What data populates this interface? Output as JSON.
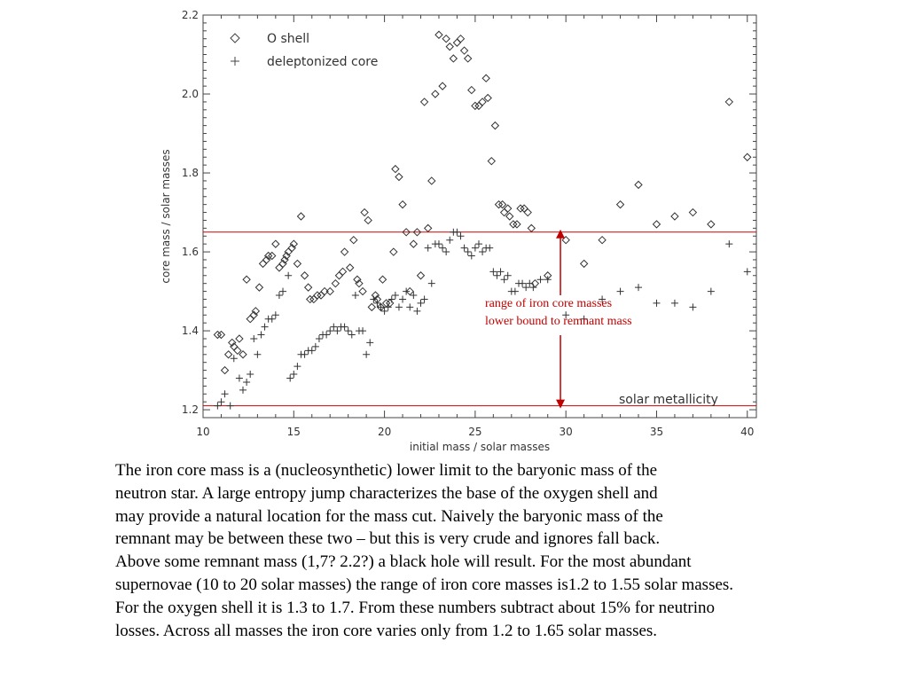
{
  "chart_data": {
    "type": "scatter",
    "xlabel": "initial mass / solar masses",
    "ylabel": "core mass / solar masses",
    "xlim": [
      10,
      40.5
    ],
    "ylim": [
      1.18,
      2.2
    ],
    "xticks": [
      "10",
      "15",
      "20",
      "25",
      "30",
      "35",
      "40"
    ],
    "yticks": [
      "1.2",
      "1.4",
      "1.6",
      "1.8",
      "2.0",
      "2.2"
    ],
    "legend": {
      "placement": "top-left"
    },
    "series": [
      {
        "name": "O shell",
        "marker": "diamond",
        "points": [
          [
            10.8,
            1.39
          ],
          [
            11.0,
            1.39
          ],
          [
            11.2,
            1.3
          ],
          [
            11.4,
            1.34
          ],
          [
            11.6,
            1.37
          ],
          [
            11.7,
            1.36
          ],
          [
            11.9,
            1.35
          ],
          [
            12.0,
            1.38
          ],
          [
            12.2,
            1.34
          ],
          [
            12.4,
            1.53
          ],
          [
            12.6,
            1.43
          ],
          [
            12.8,
            1.44
          ],
          [
            12.9,
            1.45
          ],
          [
            13.1,
            1.51
          ],
          [
            13.3,
            1.57
          ],
          [
            13.5,
            1.58
          ],
          [
            13.6,
            1.59
          ],
          [
            13.8,
            1.59
          ],
          [
            14.0,
            1.62
          ],
          [
            14.2,
            1.56
          ],
          [
            14.4,
            1.57
          ],
          [
            14.5,
            1.58
          ],
          [
            14.6,
            1.59
          ],
          [
            14.7,
            1.6
          ],
          [
            14.9,
            1.61
          ],
          [
            15.0,
            1.62
          ],
          [
            15.2,
            1.57
          ],
          [
            15.4,
            1.69
          ],
          [
            15.6,
            1.54
          ],
          [
            15.8,
            1.51
          ],
          [
            15.9,
            1.48
          ],
          [
            16.1,
            1.48
          ],
          [
            16.3,
            1.49
          ],
          [
            16.5,
            1.49
          ],
          [
            16.7,
            1.5
          ],
          [
            17.0,
            1.5
          ],
          [
            17.3,
            1.52
          ],
          [
            17.5,
            1.54
          ],
          [
            17.7,
            1.55
          ],
          [
            17.8,
            1.6
          ],
          [
            18.1,
            1.56
          ],
          [
            18.3,
            1.63
          ],
          [
            18.5,
            1.53
          ],
          [
            18.6,
            1.52
          ],
          [
            18.8,
            1.5
          ],
          [
            18.9,
            1.7
          ],
          [
            19.1,
            1.68
          ],
          [
            19.3,
            1.46
          ],
          [
            19.5,
            1.49
          ],
          [
            19.6,
            1.48
          ],
          [
            19.8,
            1.46
          ],
          [
            19.9,
            1.53
          ],
          [
            20.1,
            1.47
          ],
          [
            20.3,
            1.47
          ],
          [
            20.5,
            1.6
          ],
          [
            20.6,
            1.81
          ],
          [
            20.8,
            1.79
          ],
          [
            21.0,
            1.72
          ],
          [
            21.2,
            1.65
          ],
          [
            21.4,
            1.5
          ],
          [
            21.6,
            1.62
          ],
          [
            21.8,
            1.65
          ],
          [
            22.0,
            1.54
          ],
          [
            22.2,
            1.98
          ],
          [
            22.4,
            1.66
          ],
          [
            22.6,
            1.78
          ],
          [
            22.8,
            2.0
          ],
          [
            23.0,
            2.15
          ],
          [
            23.2,
            2.02
          ],
          [
            23.4,
            2.14
          ],
          [
            23.6,
            2.12
          ],
          [
            23.8,
            2.09
          ],
          [
            24.0,
            2.13
          ],
          [
            24.2,
            2.14
          ],
          [
            24.4,
            2.11
          ],
          [
            24.6,
            2.09
          ],
          [
            24.8,
            2.01
          ],
          [
            25.0,
            1.97
          ],
          [
            25.2,
            1.97
          ],
          [
            25.4,
            1.98
          ],
          [
            25.6,
            2.04
          ],
          [
            25.7,
            1.99
          ],
          [
            25.9,
            1.83
          ],
          [
            26.1,
            1.92
          ],
          [
            26.3,
            1.72
          ],
          [
            26.5,
            1.72
          ],
          [
            26.6,
            1.7
          ],
          [
            26.8,
            1.71
          ],
          [
            26.9,
            1.69
          ],
          [
            27.1,
            1.67
          ],
          [
            27.3,
            1.67
          ],
          [
            27.5,
            1.71
          ],
          [
            27.7,
            1.71
          ],
          [
            27.9,
            1.7
          ],
          [
            28.1,
            1.66
          ],
          [
            28.3,
            1.52
          ],
          [
            29.0,
            1.54
          ],
          [
            30.0,
            1.63
          ],
          [
            31.0,
            1.57
          ],
          [
            32.0,
            1.63
          ],
          [
            33.0,
            1.72
          ],
          [
            34.0,
            1.77
          ],
          [
            35.0,
            1.67
          ],
          [
            36.0,
            1.69
          ],
          [
            37.0,
            1.7
          ],
          [
            38.0,
            1.67
          ],
          [
            39.0,
            1.98
          ],
          [
            40.0,
            1.84
          ]
        ]
      },
      {
        "name": "deleptonized core",
        "marker": "plus",
        "points": [
          [
            10.8,
            1.21
          ],
          [
            11.0,
            1.22
          ],
          [
            11.2,
            1.24
          ],
          [
            11.5,
            1.21
          ],
          [
            11.7,
            1.33
          ],
          [
            12.0,
            1.28
          ],
          [
            12.2,
            1.25
          ],
          [
            12.4,
            1.27
          ],
          [
            12.6,
            1.29
          ],
          [
            12.8,
            1.38
          ],
          [
            13.0,
            1.34
          ],
          [
            13.2,
            1.39
          ],
          [
            13.4,
            1.41
          ],
          [
            13.6,
            1.43
          ],
          [
            13.8,
            1.43
          ],
          [
            14.0,
            1.44
          ],
          [
            14.2,
            1.49
          ],
          [
            14.4,
            1.5
          ],
          [
            14.7,
            1.54
          ],
          [
            14.8,
            1.28
          ],
          [
            15.0,
            1.29
          ],
          [
            15.2,
            1.31
          ],
          [
            15.4,
            1.34
          ],
          [
            15.6,
            1.34
          ],
          [
            15.8,
            1.35
          ],
          [
            16.0,
            1.35
          ],
          [
            16.2,
            1.36
          ],
          [
            16.4,
            1.38
          ],
          [
            16.6,
            1.39
          ],
          [
            16.8,
            1.39
          ],
          [
            17.0,
            1.4
          ],
          [
            17.2,
            1.41
          ],
          [
            17.4,
            1.4
          ],
          [
            17.6,
            1.41
          ],
          [
            17.8,
            1.41
          ],
          [
            18.0,
            1.4
          ],
          [
            18.2,
            1.39
          ],
          [
            18.4,
            1.49
          ],
          [
            18.6,
            1.4
          ],
          [
            18.8,
            1.4
          ],
          [
            19.0,
            1.34
          ],
          [
            19.2,
            1.37
          ],
          [
            19.4,
            1.48
          ],
          [
            19.6,
            1.47
          ],
          [
            19.8,
            1.46
          ],
          [
            20.0,
            1.45
          ],
          [
            20.2,
            1.46
          ],
          [
            20.4,
            1.48
          ],
          [
            20.6,
            1.49
          ],
          [
            20.8,
            1.46
          ],
          [
            21.0,
            1.48
          ],
          [
            21.2,
            1.5
          ],
          [
            21.4,
            1.46
          ],
          [
            21.6,
            1.49
          ],
          [
            21.8,
            1.45
          ],
          [
            22.0,
            1.47
          ],
          [
            22.2,
            1.48
          ],
          [
            22.4,
            1.61
          ],
          [
            22.6,
            1.52
          ],
          [
            22.8,
            1.62
          ],
          [
            23.0,
            1.62
          ],
          [
            23.2,
            1.61
          ],
          [
            23.4,
            1.6
          ],
          [
            23.6,
            1.63
          ],
          [
            23.8,
            1.65
          ],
          [
            24.0,
            1.65
          ],
          [
            24.2,
            1.64
          ],
          [
            24.4,
            1.61
          ],
          [
            24.6,
            1.6
          ],
          [
            24.8,
            1.59
          ],
          [
            25.0,
            1.61
          ],
          [
            25.2,
            1.62
          ],
          [
            25.4,
            1.6
          ],
          [
            25.6,
            1.61
          ],
          [
            25.8,
            1.61
          ],
          [
            26.0,
            1.55
          ],
          [
            26.2,
            1.54
          ],
          [
            26.4,
            1.55
          ],
          [
            26.6,
            1.53
          ],
          [
            26.8,
            1.54
          ],
          [
            27.0,
            1.5
          ],
          [
            27.2,
            1.5
          ],
          [
            27.4,
            1.52
          ],
          [
            27.6,
            1.52
          ],
          [
            27.8,
            1.51
          ],
          [
            28.0,
            1.52
          ],
          [
            28.2,
            1.51
          ],
          [
            28.6,
            1.53
          ],
          [
            29.0,
            1.53
          ],
          [
            30.0,
            1.44
          ],
          [
            31.0,
            1.43
          ],
          [
            32.0,
            1.48
          ],
          [
            33.0,
            1.5
          ],
          [
            34.0,
            1.51
          ],
          [
            35.0,
            1.47
          ],
          [
            36.0,
            1.47
          ],
          [
            37.0,
            1.46
          ],
          [
            38.0,
            1.5
          ],
          [
            39.0,
            1.62
          ],
          [
            40.0,
            1.55
          ]
        ]
      }
    ],
    "reference_lines": [
      {
        "y": 1.65,
        "color": "#d00000",
        "label": ""
      },
      {
        "y": 1.21,
        "color": "#d00000",
        "label": "solar metallicity"
      }
    ],
    "annotation": {
      "x": 29.7,
      "y_top": 1.65,
      "y_bottom": 1.21,
      "lines": [
        "range of iron core masses",
        "lower bound to remnant mass"
      ],
      "color": "#c00000"
    }
  },
  "caption": [
    "The iron core mass is a (nucleosynthetic) lower limit to the baryonic mass of the",
    "neutron star. A large entropy jump characterizes the base of the oxygen shell and",
    "may provide a natural location for the mass cut. Naively the baryonic mass of the",
    "remnant may be between these two – but this is very crude and ignores fall back.",
    "Above some remnant mass (1,7? 2.2?) a black hole will result. For the most abundant",
    "supernovae (10 to 20 solar masses) the range of iron core masses is1.2 to 1.55 solar masses.",
    "For the oxygen shell it is 1.3 to 1.7. From these numbers subtract about 15% for neutrino",
    "losses. Across all masses the iron core varies only from 1.2 to 1.65 solar masses."
  ]
}
